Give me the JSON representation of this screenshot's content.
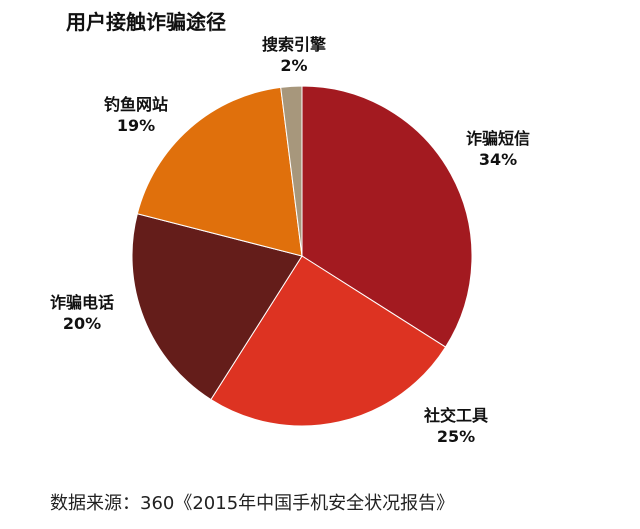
{
  "chart_data": {
    "type": "pie",
    "title": "用户接触诈骗途径",
    "start_angle_deg": 0,
    "direction": "clockwise",
    "slices": [
      {
        "label": "诈骗短信",
        "percent_label": "34%",
        "value": 34,
        "color": "#a31a20"
      },
      {
        "label": "社交工具",
        "percent_label": "25%",
        "value": 25,
        "color": "#dd3322"
      },
      {
        "label": "诈骗电话",
        "percent_label": "20%",
        "value": 20,
        "color": "#641d1a"
      },
      {
        "label": "钓鱼网站",
        "percent_label": "19%",
        "value": 19,
        "color": "#e0700c"
      },
      {
        "label": "搜索引擎",
        "percent_label": "2%",
        "value": 2,
        "color": "#a7977c"
      }
    ]
  },
  "source": "数据来源：360《2015年中国手机安全状况报告》"
}
